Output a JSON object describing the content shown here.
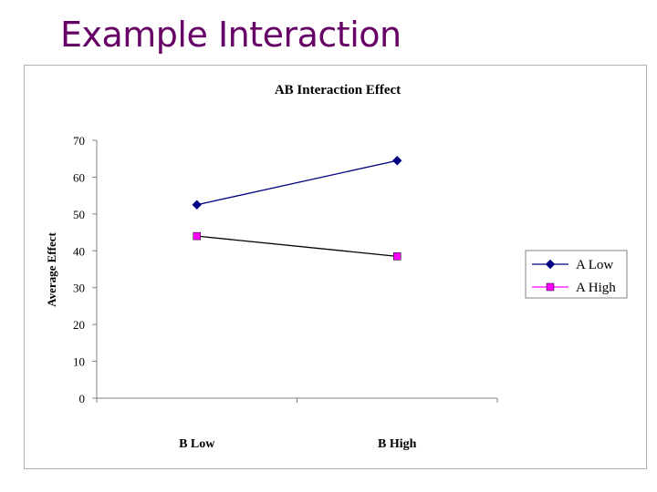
{
  "slide": {
    "title": "Example Interaction"
  },
  "chart_data": {
    "type": "line",
    "title": "AB Interaction Effect",
    "xlabel": "",
    "ylabel": "Average Effect",
    "categories": [
      "B Low",
      "B High"
    ],
    "ylim": [
      0,
      70
    ],
    "yticks": [
      0,
      10,
      20,
      30,
      40,
      50,
      60,
      70
    ],
    "grid": false,
    "legend_position": "right",
    "series": [
      {
        "name": "A Low",
        "values": [
          52.5,
          64.5
        ],
        "color": "#000080",
        "marker": "diamond"
      },
      {
        "name": "A High",
        "values": [
          44,
          38.5
        ],
        "color": "#ff00ff",
        "marker": "square"
      }
    ]
  }
}
